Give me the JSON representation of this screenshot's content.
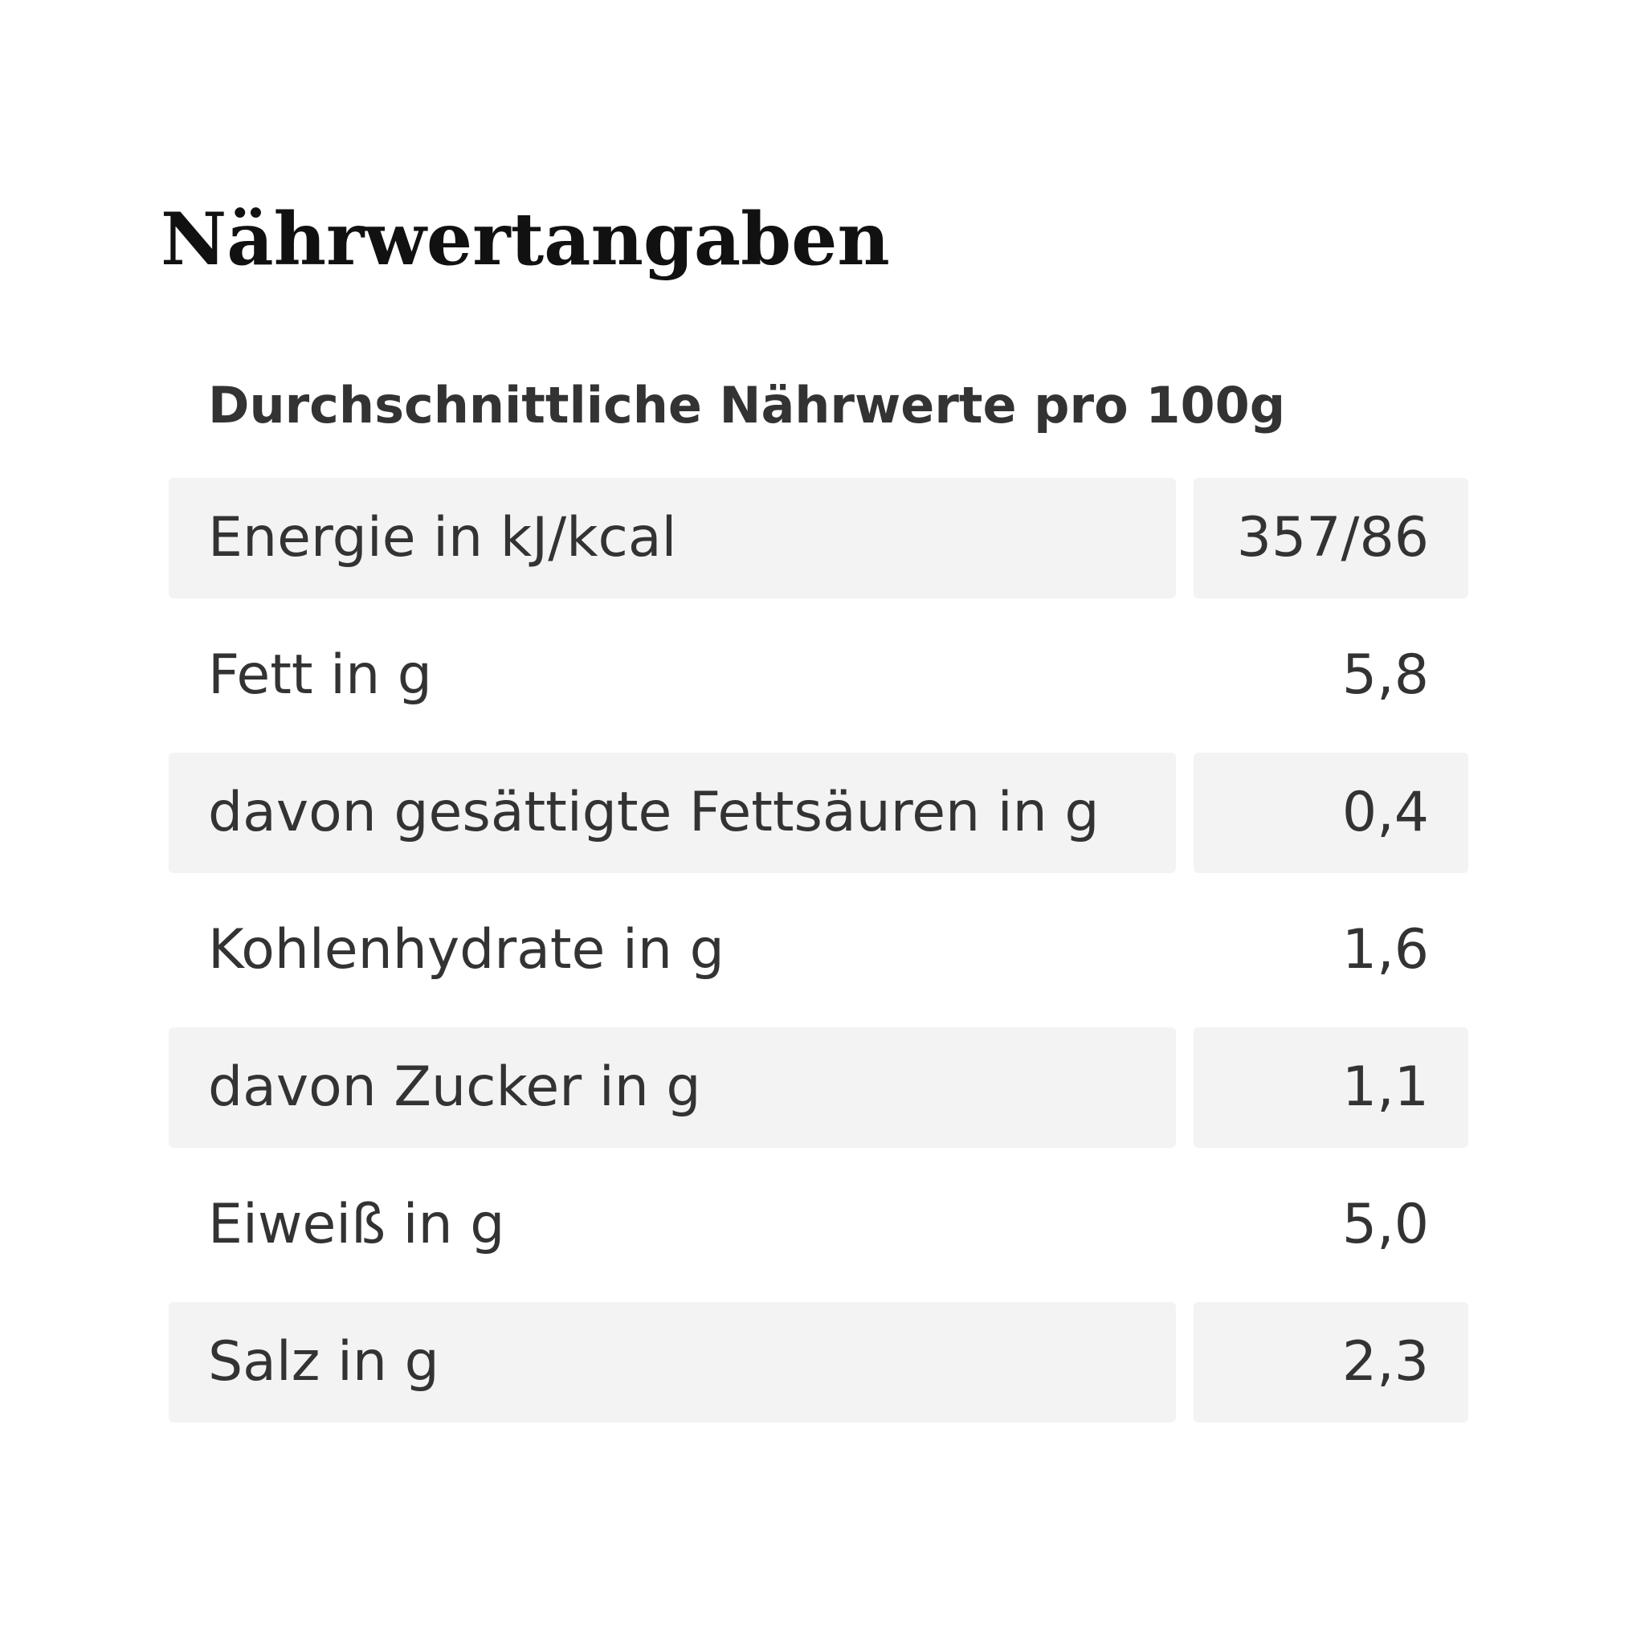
{
  "title": "Nährwertangaben",
  "table": {
    "caption": "Durchschnittliche Nährwerte pro 100g",
    "rows": [
      [
        "Energie in kJ/kcal",
        "357/86"
      ],
      [
        "Fett in g",
        "5,8"
      ],
      [
        "davon gesättigte Fettsäuren in g",
        "0,4"
      ],
      [
        "Kohlenhydrate in g",
        "1,6"
      ],
      [
        "davon Zucker in g",
        "1,1"
      ],
      [
        "Eiweiß in g",
        "5,0"
      ],
      [
        "Salz in g",
        "2,3"
      ]
    ]
  }
}
